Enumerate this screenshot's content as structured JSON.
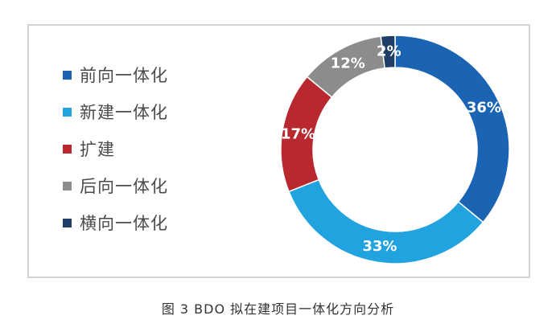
{
  "chart_data": {
    "type": "pie",
    "categories": [
      "前向一体化",
      "新建一体化",
      "扩建",
      "后向一体化",
      "横向一体化"
    ],
    "values": [
      36,
      33,
      17,
      12,
      2
    ],
    "data_labels": [
      "36%",
      "33%",
      "17%",
      "12%",
      "2%"
    ],
    "colors": [
      "#1b64b3",
      "#20a3df",
      "#b8282e",
      "#8c8c8c",
      "#1f3f66"
    ],
    "label_colors": [
      "#ffffff",
      "#ffffff",
      "#ffffff",
      "#ffffff",
      "#ffffff"
    ],
    "legend_position": "left",
    "donut": true,
    "start_angle_deg": 0,
    "direction": "clockwise"
  },
  "caption": "图 3  BDO 拟在建项目一体化方向分析"
}
